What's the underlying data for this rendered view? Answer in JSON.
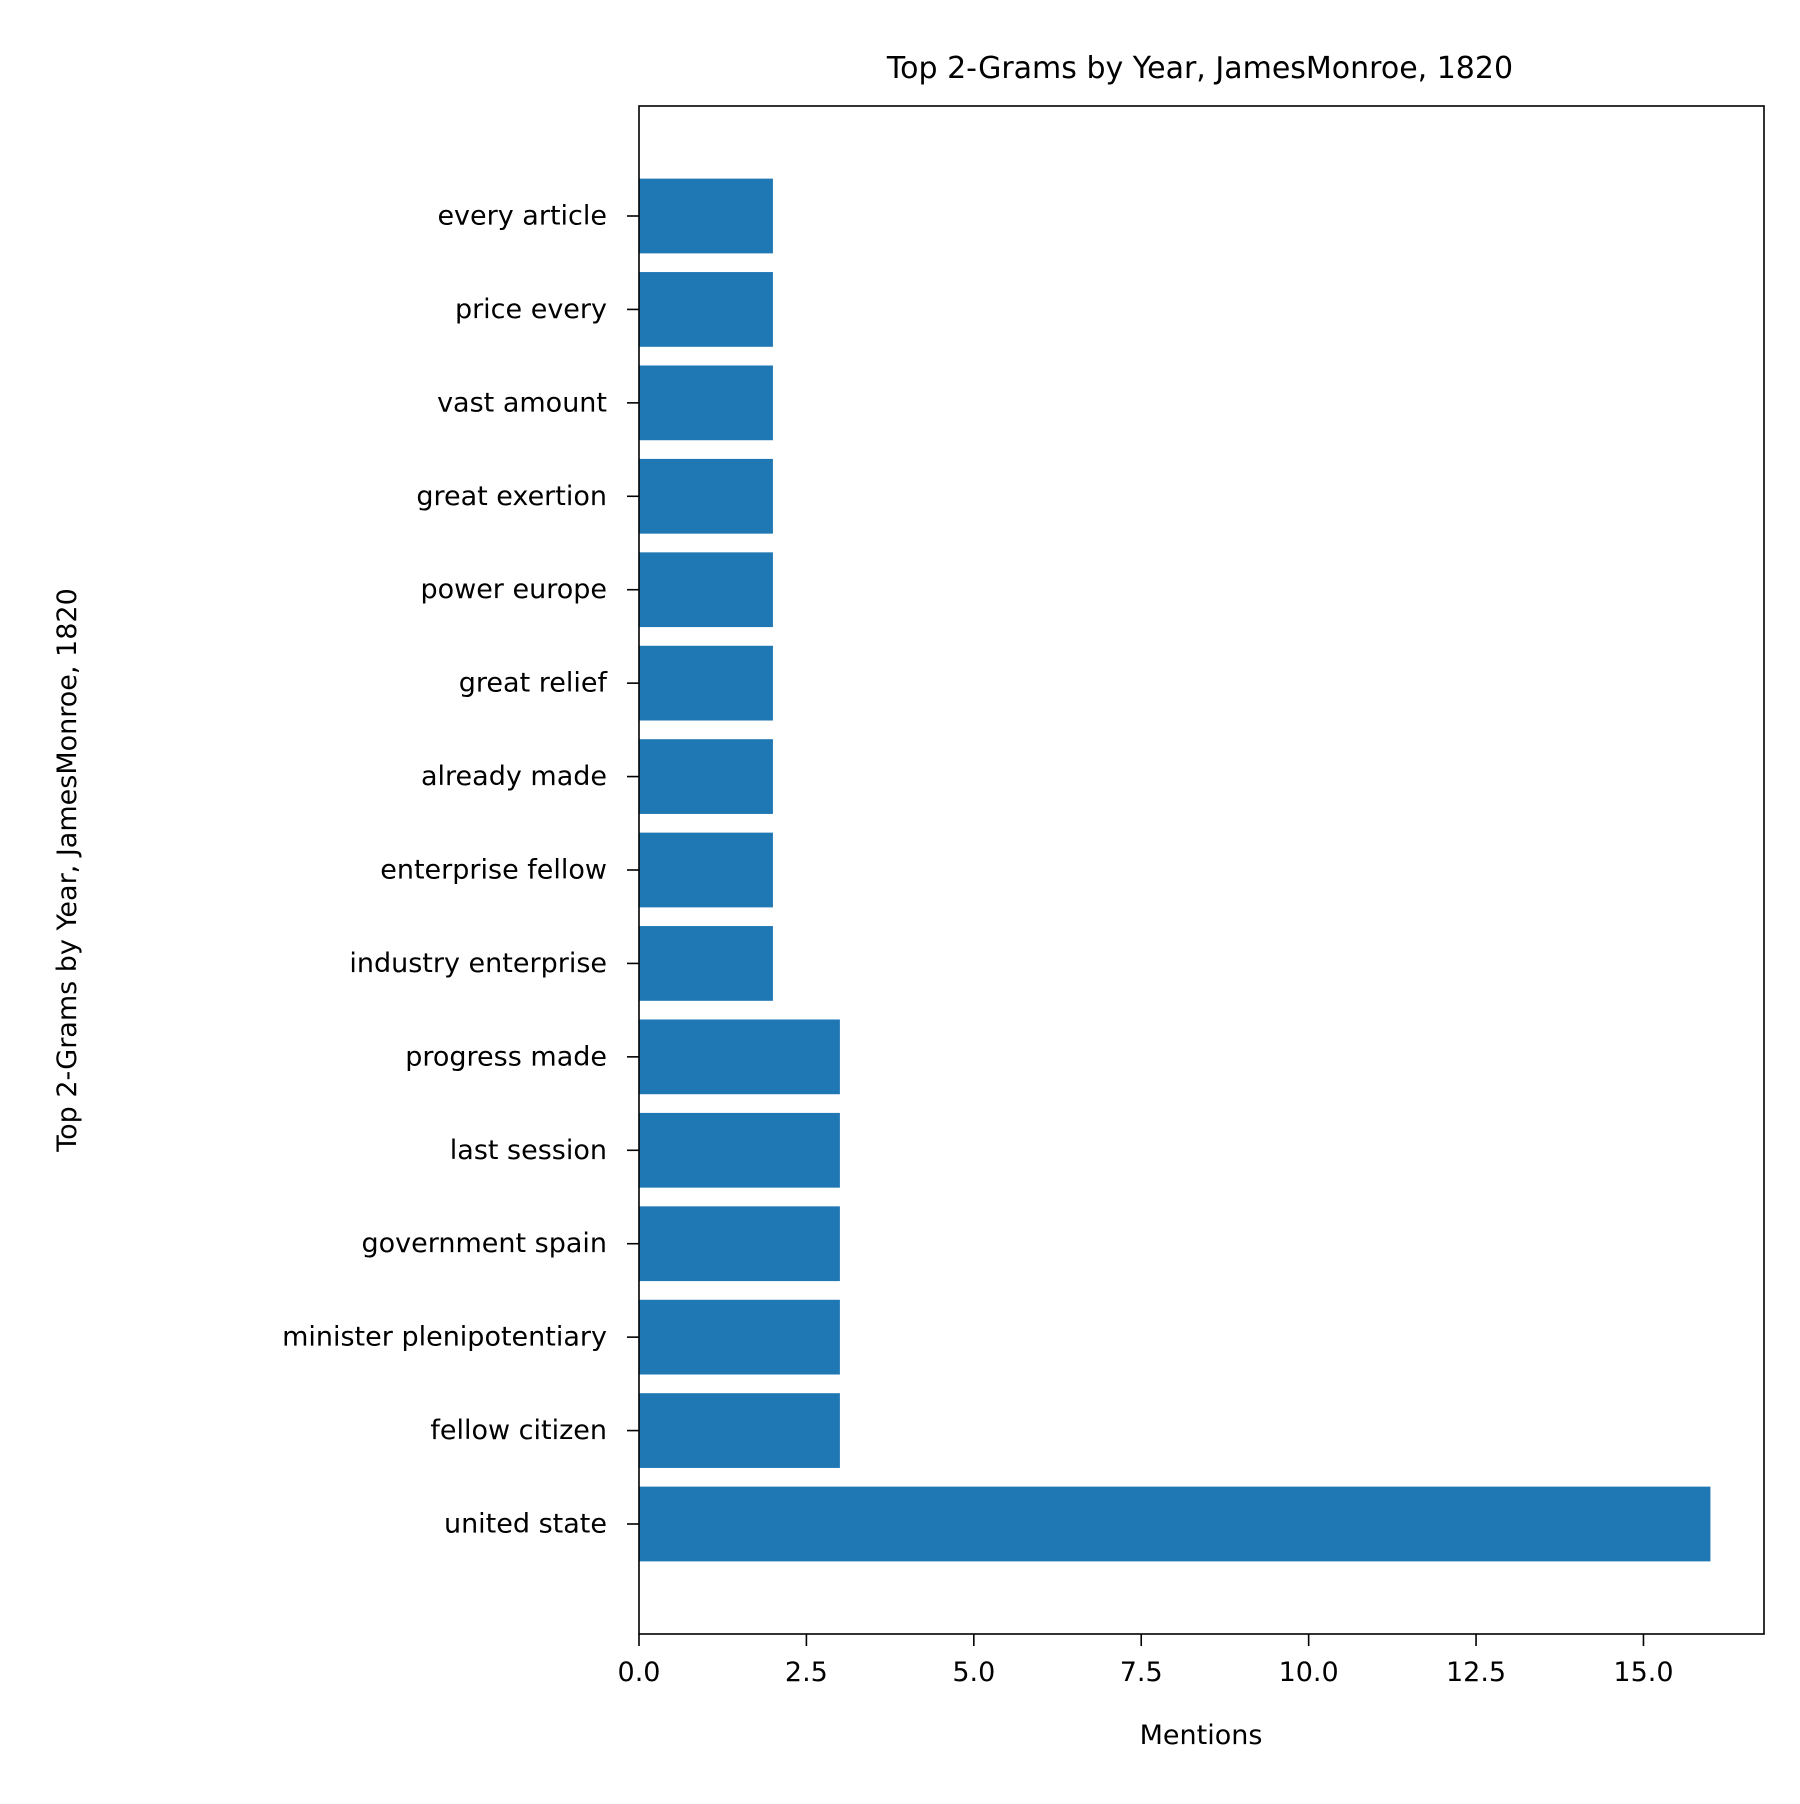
{
  "chart_data": {
    "type": "bar",
    "orientation": "horizontal",
    "title": "Top 2-Grams by Year, JamesMonroe, 1820",
    "xlabel": "Mentions",
    "ylabel": "Top 2-Grams by Year, JamesMonroe, 1820",
    "categories": [
      "united state",
      "fellow citizen",
      "minister plenipotentiary",
      "government spain",
      "last session",
      "progress made",
      "industry enterprise",
      "enterprise fellow",
      "already made",
      "great relief",
      "power europe",
      "great exertion",
      "vast amount",
      "price every",
      "every article"
    ],
    "values": [
      16,
      3,
      3,
      3,
      3,
      3,
      2,
      2,
      2,
      2,
      2,
      2,
      2,
      2,
      2
    ],
    "xlim": [
      0,
      16.8
    ],
    "xticks": [
      0.0,
      2.5,
      5.0,
      7.5,
      10.0,
      12.5,
      15.0
    ],
    "xtick_labels": [
      "0.0",
      "2.5",
      "5.0",
      "7.5",
      "10.0",
      "12.5",
      "15.0"
    ],
    "bar_color": "#1f77b4",
    "grid": false,
    "legend": "none"
  }
}
